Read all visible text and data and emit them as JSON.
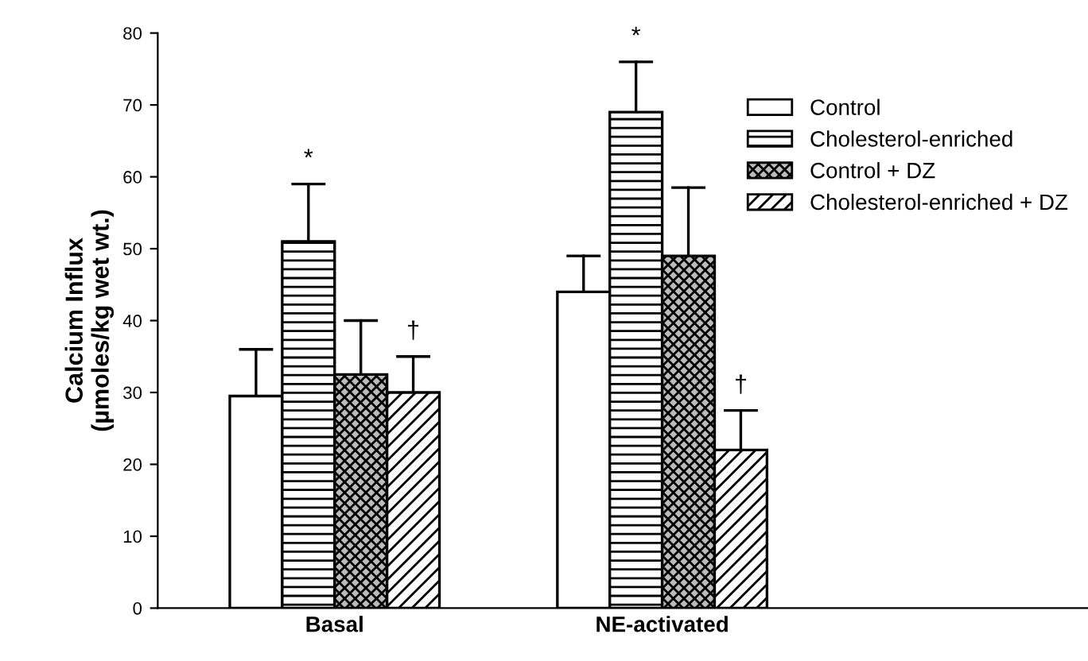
{
  "chart_data": {
    "type": "bar",
    "ylabel": "Calcium Influx\n(µmoles/kg wet wt.)",
    "categories": [
      "Basal",
      "NE-activated"
    ],
    "series": [
      {
        "name": "Control",
        "color": "#ffffff",
        "values": [
          29.5,
          44
        ],
        "errors": [
          [
            29.5,
            36
          ],
          [
            44,
            49
          ]
        ]
      },
      {
        "name": "Cholesterol-enriched",
        "color": "#000000",
        "values": [
          51,
          69
        ],
        "errors": [
          [
            51,
            59
          ],
          [
            69,
            76
          ]
        ]
      },
      {
        "name": "Control + DZ",
        "color": "#000000",
        "values": [
          32.5,
          49
        ],
        "errors": [
          [
            32.5,
            40
          ],
          [
            49,
            58.5
          ]
        ]
      },
      {
        "name": "Cholesterol-enriched + DZ",
        "color": "#000000",
        "values": [
          30,
          22
        ],
        "errors": [
          [
            30,
            35
          ],
          [
            22,
            27.5
          ]
        ]
      }
    ],
    "annotations": [
      "*",
      "†",
      "*",
      "†"
    ],
    "ylim": [
      0,
      80
    ],
    "yticks": [
      0,
      10,
      20,
      30,
      40,
      50,
      60,
      70,
      80
    ],
    "grid": false,
    "legend": "top right"
  }
}
